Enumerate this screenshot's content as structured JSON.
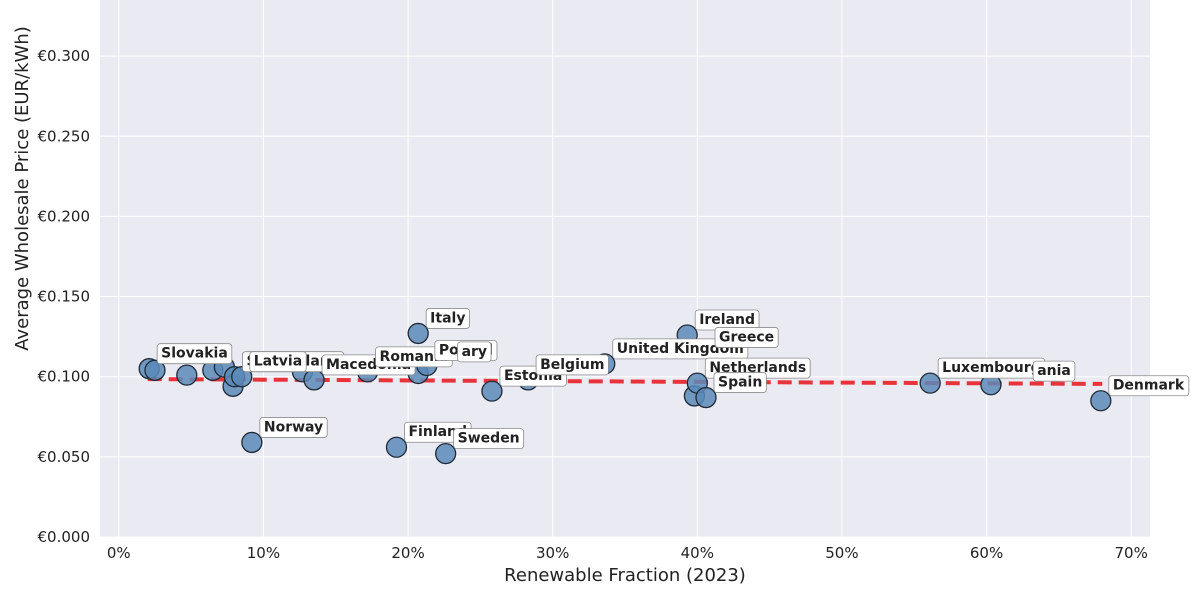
{
  "chart_data": {
    "type": "scatter",
    "xlabel": "Renewable Fraction (2023)",
    "ylabel": "Average Wholesale Price (EUR/kWh)",
    "xlim": [
      -0.013,
      0.713
    ],
    "ylim": [
      0.0,
      0.335
    ],
    "x_ticks": [
      0.0,
      0.1,
      0.2,
      0.3,
      0.4,
      0.5,
      0.6,
      0.7
    ],
    "x_tick_labels": [
      "0%",
      "10%",
      "20%",
      "30%",
      "40%",
      "50%",
      "60%",
      "70%"
    ],
    "y_ticks": [
      0.0,
      0.05,
      0.1,
      0.15,
      0.2,
      0.25,
      0.3
    ],
    "y_tick_labels": [
      "€0.000",
      "€0.050",
      "€0.100",
      "€0.150",
      "€0.200",
      "€0.250",
      "€0.300"
    ],
    "grid": true,
    "point_color": "#5b8ab8",
    "trend_color": "#e8333a",
    "trend_line": {
      "x": [
        0.02,
        0.68
      ],
      "y": [
        0.0985,
        0.0955
      ]
    },
    "points": [
      {
        "x": 0.021,
        "y": 0.105,
        "label": "Slovakia"
      },
      {
        "x": 0.025,
        "y": 0.104,
        "label": ""
      },
      {
        "x": 0.047,
        "y": 0.101,
        "label": ""
      },
      {
        "x": 0.065,
        "y": 0.104,
        "label": ""
      },
      {
        "x": 0.073,
        "y": 0.106,
        "label": ""
      },
      {
        "x": 0.079,
        "y": 0.094,
        "label": ""
      },
      {
        "x": 0.08,
        "y": 0.1,
        "label": "Switzerland"
      },
      {
        "x": 0.085,
        "y": 0.1,
        "label": "Latvia"
      },
      {
        "x": 0.092,
        "y": 0.059,
        "label": "Norway"
      },
      {
        "x": 0.127,
        "y": 0.103,
        "label": ""
      },
      {
        "x": 0.135,
        "y": 0.098,
        "label": "Macedonia"
      },
      {
        "x": 0.172,
        "y": 0.103,
        "label": "Romania"
      },
      {
        "x": 0.192,
        "y": 0.056,
        "label": "Finland"
      },
      {
        "x": 0.207,
        "y": 0.127,
        "label": "Italy"
      },
      {
        "x": 0.207,
        "y": 0.102,
        "label": ""
      },
      {
        "x": 0.213,
        "y": 0.107,
        "label": "Poland"
      },
      {
        "x": 0.226,
        "y": 0.052,
        "label": "Sweden"
      },
      {
        "x": 0.258,
        "y": 0.091,
        "label": "Estonia"
      },
      {
        "x": 0.283,
        "y": 0.098,
        "label": "Belgium"
      },
      {
        "x": 0.336,
        "y": 0.108,
        "label": "United Kingdom"
      },
      {
        "x": 0.393,
        "y": 0.126,
        "label": "Ireland"
      },
      {
        "x": 0.398,
        "y": 0.088,
        "label": ""
      },
      {
        "x": 0.4,
        "y": 0.096,
        "label": "Netherlands"
      },
      {
        "x": 0.406,
        "y": 0.087,
        "label": "Spain"
      },
      {
        "x": 0.561,
        "y": 0.096,
        "label": "Luxembourg"
      },
      {
        "x": 0.603,
        "y": 0.095,
        "label": ""
      },
      {
        "x": 0.679,
        "y": 0.085,
        "label": "Denmark"
      }
    ],
    "extra_labels": [
      {
        "x": 0.415,
        "y": 0.122,
        "label": "Greece"
      },
      {
        "x": 0.237,
        "y": 0.113,
        "label": "ary"
      },
      {
        "x": 0.635,
        "y": 0.101,
        "label": "ania"
      }
    ]
  }
}
